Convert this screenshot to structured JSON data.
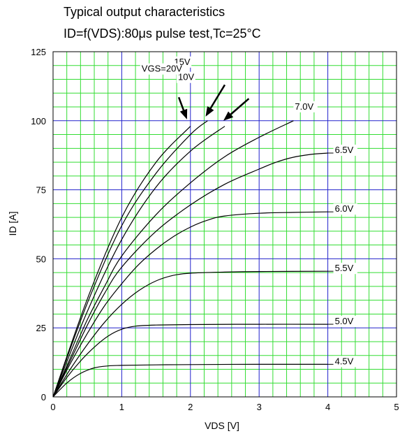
{
  "chart_data": {
    "type": "line",
    "title": "Typical output characteristics",
    "subtitle": "ID=f(VDS):80μs pulse test,Tc=25°C",
    "xlabel": "VDS [V]",
    "ylabel": "ID [A]",
    "xlim": [
      0,
      5
    ],
    "ylim": [
      0,
      125
    ],
    "x_ticks": [
      "0",
      "1",
      "2",
      "3",
      "4",
      "5"
    ],
    "y_ticks": [
      "0",
      "25",
      "50",
      "75",
      "100",
      "125"
    ],
    "grid": true,
    "colors": {
      "major_grid": "#2222cc",
      "minor_grid": "#33dd33",
      "curve": "#000000"
    },
    "series": [
      {
        "name": "4.5V",
        "x": [
          0,
          0.2,
          0.4,
          0.6,
          0.8,
          1.0,
          1.5,
          2.0,
          3.0,
          4.0
        ],
        "y": [
          0,
          5,
          8.5,
          10.5,
          11.2,
          11.4,
          11.6,
          11.7,
          11.8,
          11.8
        ]
      },
      {
        "name": "5.0V",
        "x": [
          0,
          0.2,
          0.4,
          0.6,
          0.8,
          1.0,
          1.2,
          1.5,
          2.0,
          3.0,
          4.0
        ],
        "y": [
          0,
          7,
          13,
          18,
          22,
          24.5,
          25.6,
          26,
          26.2,
          26.3,
          26.3
        ]
      },
      {
        "name": "5.5V",
        "x": [
          0,
          0.25,
          0.5,
          0.75,
          1.0,
          1.25,
          1.5,
          1.75,
          2.0,
          2.5,
          3.0,
          4.0
        ],
        "y": [
          0,
          10,
          19,
          27,
          33.5,
          38.5,
          42,
          44,
          44.8,
          45.2,
          45.4,
          45.5
        ]
      },
      {
        "name": "6.0V",
        "x": [
          0,
          0.25,
          0.5,
          0.75,
          1.0,
          1.25,
          1.5,
          1.75,
          2.0,
          2.25,
          2.5,
          3.0,
          3.5,
          4.0
        ],
        "y": [
          0,
          12,
          23,
          33,
          41,
          48,
          53.5,
          58,
          61.5,
          64,
          65.5,
          66.5,
          66.8,
          67
        ]
      },
      {
        "name": "6.5V",
        "x": [
          0,
          0.25,
          0.5,
          0.75,
          1.0,
          1.5,
          2.0,
          2.5,
          3.0,
          3.25,
          3.5,
          3.75,
          4.0
        ],
        "y": [
          0,
          13,
          26,
          37.5,
          47,
          60,
          69.5,
          77,
          82.5,
          85,
          86.8,
          87.8,
          88.3
        ]
      },
      {
        "name": "7.0V",
        "x": [
          0,
          0.25,
          0.5,
          0.75,
          1.0,
          1.5,
          2.0,
          2.5,
          3.0,
          3.5
        ],
        "y": [
          0,
          14,
          28,
          40,
          51,
          66,
          77.5,
          87,
          94,
          100
        ]
      },
      {
        "name": "10V",
        "x": [
          0,
          0.5,
          1.0,
          1.5,
          2.0,
          2.5
        ],
        "y": [
          0,
          31,
          57,
          76,
          89,
          98
        ]
      },
      {
        "name": "15V",
        "x": [
          0,
          0.5,
          1.0,
          1.5,
          2.0,
          2.25
        ],
        "y": [
          0,
          34,
          62,
          81,
          95,
          100
        ]
      },
      {
        "name": "VGS=20V",
        "x": [
          0,
          0.5,
          1.0,
          1.5,
          2.0
        ],
        "y": [
          0,
          35.5,
          65,
          85,
          98
        ]
      }
    ]
  }
}
